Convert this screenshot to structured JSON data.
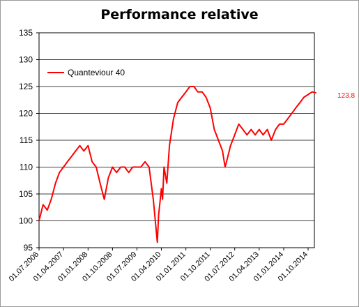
{
  "chart_data": {
    "type": "line",
    "title": "Performance relative",
    "xlabel": "",
    "ylabel": "",
    "ylim": [
      95,
      135
    ],
    "yticks": [
      95,
      100,
      105,
      110,
      115,
      120,
      125,
      130,
      135
    ],
    "xticks": [
      "01.07.2006",
      "01.04.2007",
      "01.01.2008",
      "01.10.2008",
      "01.07.2009",
      "01.04.2010",
      "01.01.2011",
      "01.10.2011",
      "01.07.2012",
      "01.04.2013",
      "01.01.2014",
      "01.10.2014"
    ],
    "grid": "horizontal",
    "legend": "top-left",
    "series": [
      {
        "name": "Quanteviour 40",
        "color": "#ff0000",
        "last_value_label": "123.8",
        "x": [
          "2006-07-01",
          "2006-08-15",
          "2006-10-01",
          "2006-11-15",
          "2007-01-01",
          "2007-02-15",
          "2007-04-01",
          "2007-05-15",
          "2007-07-01",
          "2007-08-15",
          "2007-10-01",
          "2007-11-15",
          "2008-01-01",
          "2008-02-15",
          "2008-04-01",
          "2008-05-15",
          "2008-07-01",
          "2008-08-15",
          "2008-10-01",
          "2008-11-15",
          "2009-01-01",
          "2009-02-15",
          "2009-04-01",
          "2009-05-15",
          "2009-07-01",
          "2009-08-15",
          "2009-10-01",
          "2009-11-15",
          "2010-01-01",
          "2010-02-15",
          "2010-03-01",
          "2010-03-20",
          "2010-04-01",
          "2010-04-15",
          "2010-05-01",
          "2010-06-01",
          "2010-07-01",
          "2010-08-15",
          "2010-10-01",
          "2010-11-15",
          "2011-01-01",
          "2011-02-15",
          "2011-04-01",
          "2011-05-15",
          "2011-07-01",
          "2011-08-15",
          "2011-10-01",
          "2011-11-15",
          "2012-01-01",
          "2012-02-15",
          "2012-03-15",
          "2012-04-15",
          "2012-05-15",
          "2012-07-01",
          "2012-08-15",
          "2012-10-01",
          "2012-11-15",
          "2013-01-01",
          "2013-02-15",
          "2013-04-01",
          "2013-05-15",
          "2013-07-01",
          "2013-08-15",
          "2013-10-01",
          "2013-11-15",
          "2014-01-01",
          "2014-02-15",
          "2014-04-01",
          "2014-05-15",
          "2014-07-01",
          "2014-08-15",
          "2014-10-01",
          "2014-11-15",
          "2014-12-31"
        ],
        "values": [
          100,
          103,
          102,
          104,
          107,
          109,
          110,
          111,
          112,
          113,
          114,
          113,
          114,
          111,
          110,
          107,
          104,
          108,
          110,
          109,
          110,
          110,
          109,
          110,
          110,
          110,
          111,
          110,
          104,
          96,
          101,
          104,
          106,
          104,
          110,
          107,
          114,
          119,
          122,
          123,
          124,
          125,
          125,
          124,
          124,
          123,
          121,
          117,
          115,
          113,
          110,
          112,
          114,
          116,
          118,
          117,
          116,
          117,
          116,
          117,
          116,
          117,
          115,
          117,
          118,
          118,
          119,
          120,
          121,
          122,
          123,
          123.5,
          124,
          123.8
        ]
      }
    ]
  }
}
